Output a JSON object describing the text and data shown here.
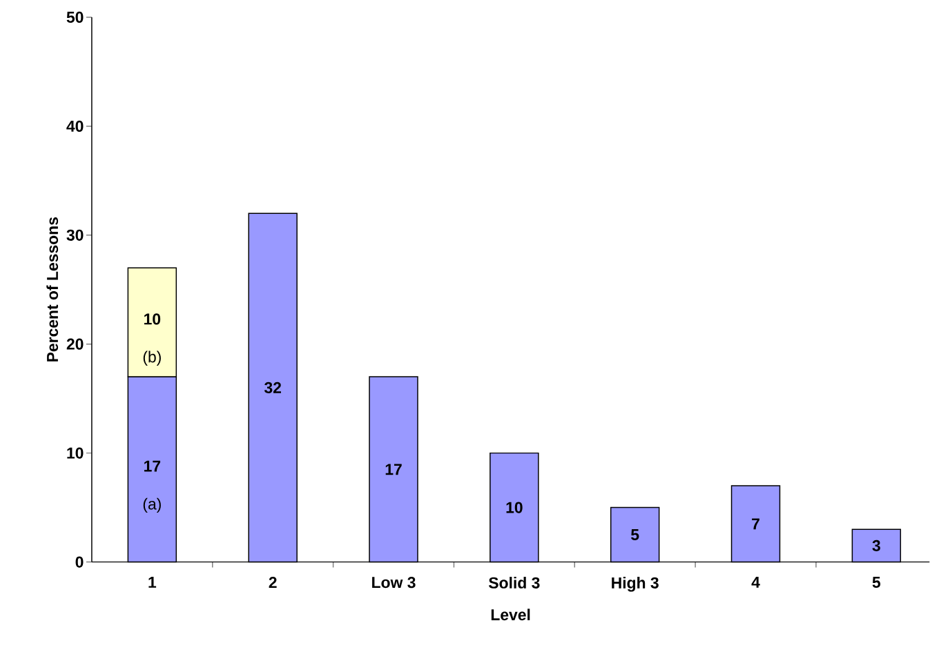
{
  "chart_data": {
    "type": "bar",
    "stacked": true,
    "xlabel": "Level",
    "ylabel": "Percent of Lessons",
    "categories": [
      "1",
      "2",
      "Low 3",
      "Solid 3",
      "High 3",
      "4",
      "5"
    ],
    "series": [
      {
        "color": "#9999ff",
        "values": [
          17,
          32,
          17,
          10,
          5,
          7,
          3
        ],
        "value_labels": [
          "17",
          "32",
          "17",
          "10",
          "5",
          "7",
          "3"
        ]
      },
      {
        "color": "#ffffcc",
        "values": [
          10,
          null,
          null,
          null,
          null,
          null,
          null
        ],
        "value_labels": [
          "10",
          null,
          null,
          null,
          null,
          null,
          null
        ]
      }
    ],
    "annotations": [
      "(a)",
      "(b)"
    ],
    "ylim": [
      0,
      50
    ],
    "yticks": [
      0,
      10,
      20,
      30,
      40,
      50
    ],
    "grid": false
  }
}
